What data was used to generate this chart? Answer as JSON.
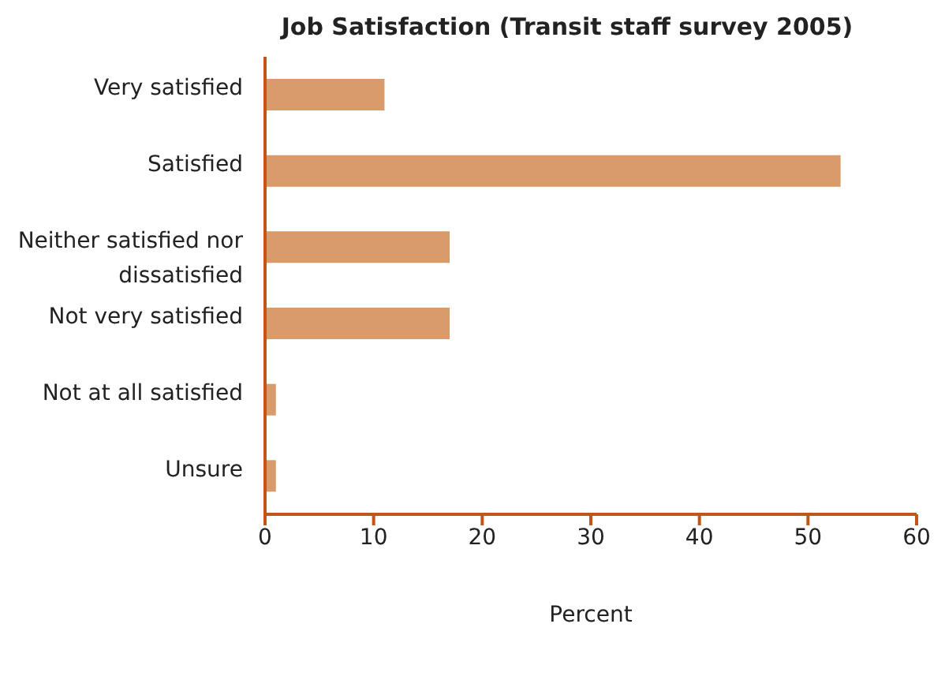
{
  "chart_data": {
    "type": "bar",
    "orientation": "horizontal",
    "title": "Job Satisfaction (Transit staff survey 2005)",
    "xlabel": "Percent",
    "categories": [
      "Very satisfied",
      "Satisfied",
      "Neither satisfied nor dissatisfied",
      "Not very satisfied",
      "Not at all satisfied",
      "Unsure"
    ],
    "values": [
      11,
      53,
      17,
      17,
      1,
      1
    ],
    "color": "#d99a6c",
    "xlim": [
      0,
      60
    ],
    "xticks": [
      0,
      10,
      20,
      30,
      40,
      50,
      60
    ],
    "grid": false,
    "legend": false
  }
}
